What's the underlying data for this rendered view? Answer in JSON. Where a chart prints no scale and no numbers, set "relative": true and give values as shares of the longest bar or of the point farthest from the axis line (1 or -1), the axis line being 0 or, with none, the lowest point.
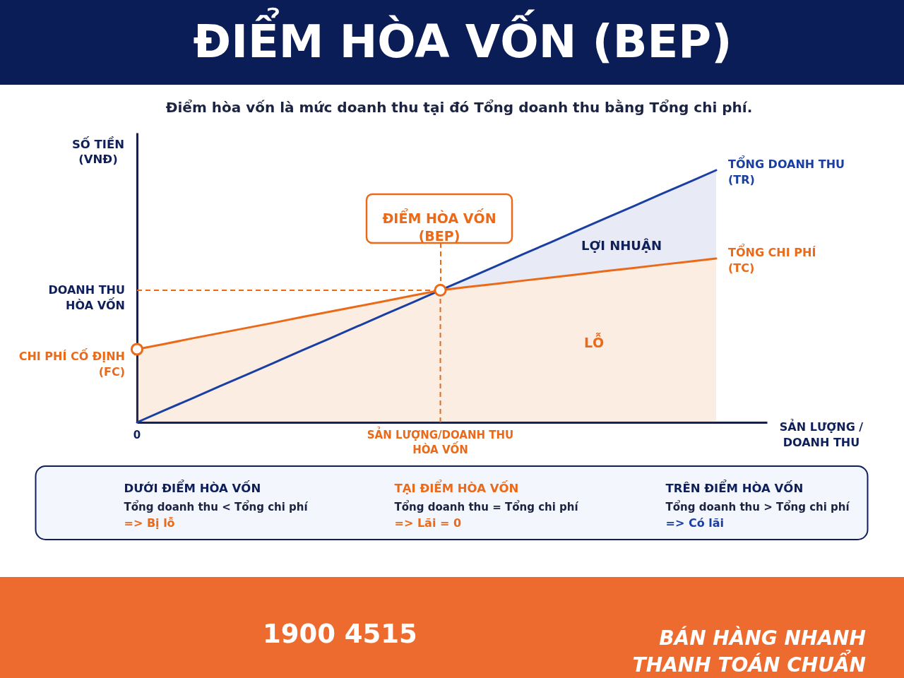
{
  "chart_data": [
    {
      "type": "line",
      "title": "ĐIỂM HÒA VỐN (BEP)",
      "subtitle": "Điểm hòa vốn là mức doanh thu tại đó Tổng doanh thu bằng Tổng chi phí.",
      "xlabel": "SẢN LƯỢNG / DOANH THU",
      "ylabel": "SỐ TIỀN (VNĐ)",
      "relative": true,
      "categories": [
        "0",
        null,
        null,
        null,
        null,
        null,
        null,
        null,
        null,
        null,
        null,
        "SẢN LƯỢNG/DOANH THU HÒA VỐN",
        null,
        null,
        null,
        null,
        null,
        null,
        null,
        null,
        null,
        null
      ],
      "series": [
        {
          "name": "TỔNG DOANH THU (TR)",
          "color": "#1a3fa3",
          "values": [
            0,
            0.048,
            0.095,
            0.143,
            0.19,
            0.238,
            0.286,
            0.333,
            0.381,
            0.429,
            0.476,
            0.524,
            0.571,
            0.619,
            0.667,
            0.714,
            0.762,
            0.81,
            0.857,
            0.905,
            0.952,
            1
          ],
          "lower": [
            null,
            null,
            null,
            null,
            null,
            null,
            null,
            null,
            null,
            null,
            null,
            0.524,
            0.537,
            0.549,
            0.562,
            0.574,
            0.587,
            0.6,
            0.612,
            0.625,
            0.637,
            0.65
          ],
          "upper": [
            null,
            null,
            null,
            null,
            null,
            null,
            null,
            null,
            null,
            null,
            null,
            0.524,
            0.571,
            0.619,
            0.667,
            0.714,
            0.762,
            0.81,
            0.857,
            0.905,
            0.952,
            1
          ]
        },
        {
          "name": "TỔNG CHI PHÍ (TC)",
          "type": "area",
          "color": "#ea6a1a",
          "values": [
            0.29,
            0.311,
            0.333,
            0.354,
            0.375,
            0.396,
            0.418,
            0.439,
            0.46,
            0.481,
            0.503,
            0.524,
            0.537,
            0.549,
            0.562,
            0.574,
            0.587,
            0.6,
            0.612,
            0.625,
            0.637,
            0.65
          ]
        },
        {
          "type": "scatter",
          "color": "#ea6a1a",
          "marker": "circle",
          "values": [
            0.29,
            null,
            null,
            null,
            null,
            null,
            null,
            null,
            null,
            null,
            null,
            0.524,
            null,
            null,
            null,
            null,
            null,
            null,
            null,
            null,
            null,
            null
          ]
        }
      ],
      "ref_lines": [
        {
          "axis": "y",
          "value": 0.524,
          "label": "DOANH THU HÒA VỐN",
          "color": "#ea6a1a",
          "line_style": "dashed"
        },
        {
          "axis": "x",
          "value": "SẢN LƯỢNG/DOANH THU HÒA VỐN",
          "color": "#ea6a1a",
          "line_style": "dashed"
        }
      ],
      "annotations": [
        "ĐIỂM HÒA VỐN (BEP)",
        {
          "text": "CHI PHÍ CỐ ĐỊNH (FC)",
          "x": "0",
          "y": 0.29
        },
        "LỢI NHUẬN",
        "LỖ"
      ]
    },
    {
      "type": "other",
      "annotations": [
        "DƯỚI ĐIỂM HÒA VỐN",
        "Tổng doanh thu < Tổng chi phí",
        "=> Bị lỗ",
        "TẠI ĐIỂM HÒA VỐN",
        "Tổng doanh thu = Tổng chi phí",
        "=> Lãi = 0",
        "TRÊN ĐIỂM HÒA VỐN",
        "Tổng doanh thu > Tổng chi phí",
        "=> Có lãi"
      ]
    },
    {
      "type": "other",
      "annotations": [
        "1900 4515",
        "BÁN HÀNG NHANH THANH TOÁN CHUẨN"
      ]
    }
  ]
}
